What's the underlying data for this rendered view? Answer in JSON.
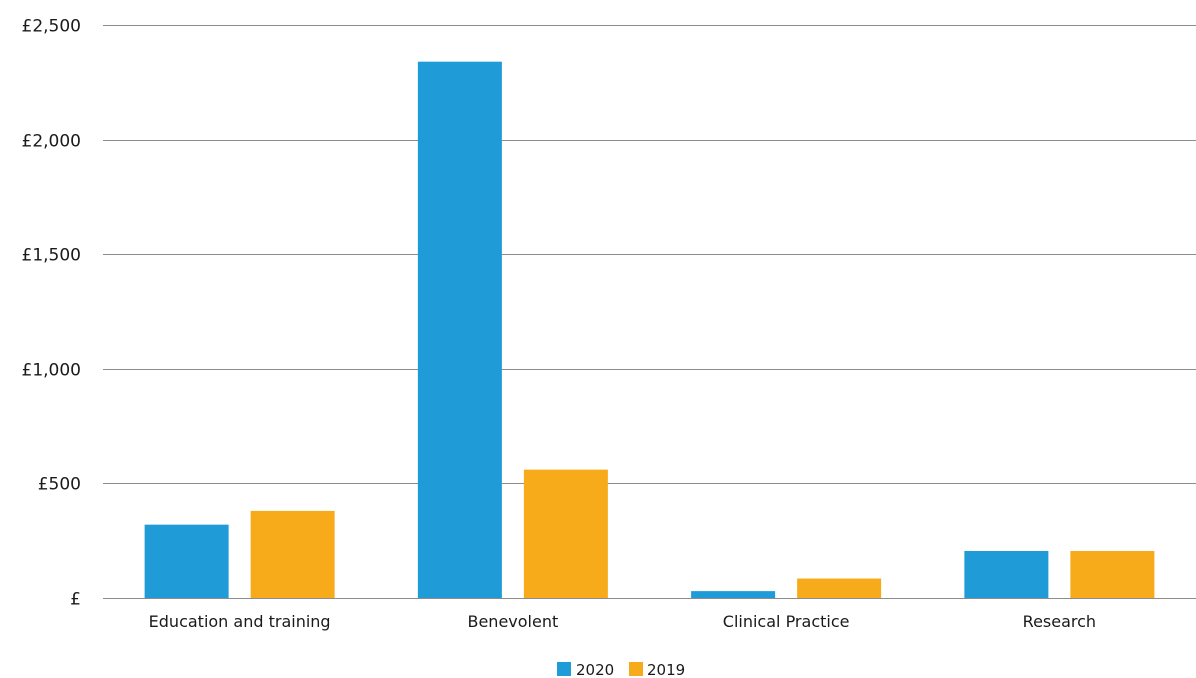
{
  "chart_data": {
    "type": "bar",
    "categories": [
      "Education and training",
      "Benevolent",
      "Clinical Practice",
      "Research"
    ],
    "series": [
      {
        "name": "2020",
        "color": "#1f9bd7",
        "values": [
          320,
          2340,
          30,
          205
        ]
      },
      {
        "name": "2019",
        "color": "#f7ab1b",
        "values": [
          380,
          560,
          85,
          205
        ]
      }
    ],
    "title": "",
    "xlabel": "",
    "ylabel": "",
    "ylim": [
      0,
      2500
    ],
    "y_ticks": [
      0,
      500,
      1000,
      1500,
      2000,
      2500
    ],
    "y_tick_labels": [
      "£",
      "£500",
      "£1,000",
      "£1,500",
      "£2,000",
      "£2,500"
    ],
    "grid": true,
    "legend": "bottom-center"
  }
}
